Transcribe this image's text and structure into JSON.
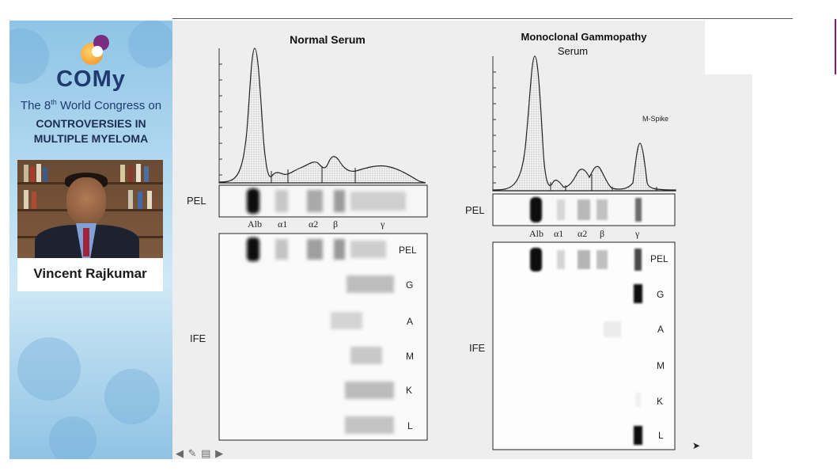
{
  "sidebar": {
    "brand": "COMy",
    "congress_prefix": "The 8",
    "congress_sup": "th",
    "congress_suffix": " World Congress on",
    "topic_line1": "CONTROVERSIES IN",
    "topic_line2": "MULTIPLE MYELOMA",
    "speaker_name": "Vincent Rajkumar"
  },
  "slide": {
    "left_title": "Normal Serum",
    "right_title_line1": "Monoclonal Gammopathy",
    "right_title_line2": "Serum",
    "m_spike": "M-Spike",
    "pel_label": "PEL",
    "ife_label": "IFE",
    "bands": [
      "Alb",
      "α1",
      "α2",
      "β",
      "γ"
    ],
    "ife_rows": [
      "PEL",
      "G",
      "A",
      "M",
      "K",
      "L"
    ]
  },
  "controls": {
    "prev_icon": "arrow-left-icon",
    "pen_icon": "pen-icon",
    "menu_icon": "menu-icon",
    "next_icon": "arrow-right-icon",
    "glyphs": "◀ ✎ ▤ ▶"
  },
  "colors": {
    "brand_navy": "#1f3a6e",
    "sidebar_blue": "#8ec4e6",
    "accent_purple": "#8b1f6c",
    "slide_bg": "#eeeeee"
  }
}
